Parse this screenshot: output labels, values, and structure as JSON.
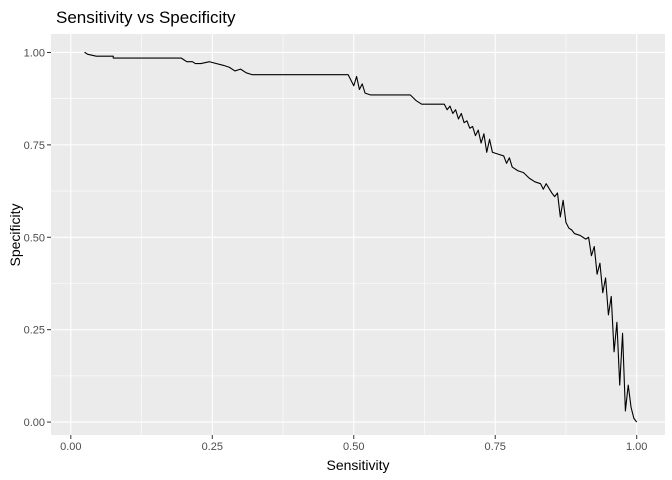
{
  "chart_data": {
    "type": "line",
    "title": "Sensitivity vs Specificity",
    "xlabel": "Sensitivity",
    "ylabel": "Specificity",
    "xlim": [
      -0.035,
      1.05
    ],
    "ylim": [
      -0.035,
      1.05
    ],
    "x_ticks": [
      0.0,
      0.25,
      0.5,
      0.75,
      1.0
    ],
    "x_tick_labels": [
      "0.00",
      "0.25",
      "0.50",
      "0.75",
      "1.00"
    ],
    "y_ticks": [
      0.0,
      0.25,
      0.5,
      0.75,
      1.0
    ],
    "y_tick_labels": [
      "0.00",
      "0.25",
      "0.50",
      "0.75",
      "1.00"
    ],
    "grid": true,
    "colors": {
      "panel": "#EBEBEB",
      "grid": "#FFFFFF",
      "line": "#000000",
      "tick": "#333333"
    },
    "series": [
      {
        "x": [
          0.03,
          0.025,
          0.03,
          0.045,
          0.055,
          0.075,
          0.075,
          0.09,
          0.12,
          0.16,
          0.195,
          0.2,
          0.205,
          0.215,
          0.22,
          0.23,
          0.245,
          0.27,
          0.28,
          0.29,
          0.3,
          0.31,
          0.32,
          0.35,
          0.4,
          0.45,
          0.49,
          0.5,
          0.505,
          0.51,
          0.515,
          0.52,
          0.53,
          0.55,
          0.6,
          0.61,
          0.62,
          0.64,
          0.66,
          0.665,
          0.67,
          0.675,
          0.68,
          0.685,
          0.69,
          0.695,
          0.7,
          0.705,
          0.71,
          0.715,
          0.72,
          0.725,
          0.73,
          0.735,
          0.74,
          0.745,
          0.755,
          0.765,
          0.77,
          0.775,
          0.78,
          0.79,
          0.8,
          0.81,
          0.82,
          0.83,
          0.835,
          0.84,
          0.85,
          0.855,
          0.86,
          0.865,
          0.87,
          0.875,
          0.88,
          0.885,
          0.89,
          0.9,
          0.91,
          0.915,
          0.92,
          0.925,
          0.93,
          0.935,
          0.94,
          0.945,
          0.95,
          0.955,
          0.96,
          0.965,
          0.97,
          0.975,
          0.98,
          0.985,
          0.99,
          0.995,
          1.0
        ],
        "y": [
          0.995,
          1.0,
          0.995,
          0.99,
          0.99,
          0.99,
          0.985,
          0.985,
          0.985,
          0.985,
          0.985,
          0.98,
          0.975,
          0.975,
          0.97,
          0.97,
          0.975,
          0.965,
          0.96,
          0.95,
          0.955,
          0.945,
          0.94,
          0.94,
          0.94,
          0.94,
          0.94,
          0.91,
          0.935,
          0.9,
          0.915,
          0.89,
          0.885,
          0.885,
          0.885,
          0.87,
          0.86,
          0.86,
          0.86,
          0.845,
          0.855,
          0.835,
          0.845,
          0.82,
          0.835,
          0.81,
          0.815,
          0.795,
          0.8,
          0.775,
          0.79,
          0.755,
          0.78,
          0.73,
          0.765,
          0.73,
          0.725,
          0.72,
          0.7,
          0.715,
          0.69,
          0.68,
          0.675,
          0.66,
          0.65,
          0.645,
          0.63,
          0.645,
          0.62,
          0.61,
          0.62,
          0.555,
          0.6,
          0.54,
          0.525,
          0.52,
          0.51,
          0.505,
          0.495,
          0.5,
          0.45,
          0.475,
          0.4,
          0.43,
          0.35,
          0.39,
          0.29,
          0.34,
          0.19,
          0.27,
          0.1,
          0.24,
          0.03,
          0.1,
          0.04,
          0.01,
          0.0
        ]
      }
    ]
  }
}
